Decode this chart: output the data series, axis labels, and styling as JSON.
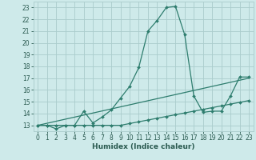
{
  "xlabel": "Humidex (Indice chaleur)",
  "bg_color": "#ceeaea",
  "grid_color": "#aacccc",
  "line_color": "#2e7d6e",
  "xlim": [
    -0.5,
    23.5
  ],
  "ylim": [
    12.5,
    23.5
  ],
  "xticks": [
    0,
    1,
    2,
    3,
    4,
    5,
    6,
    7,
    8,
    9,
    10,
    11,
    12,
    13,
    14,
    15,
    16,
    17,
    18,
    19,
    20,
    21,
    22,
    23
  ],
  "yticks": [
    13,
    14,
    15,
    16,
    17,
    18,
    19,
    20,
    21,
    22,
    23
  ],
  "line1_x": [
    0,
    1,
    2,
    3,
    4,
    5,
    6,
    7,
    8,
    9,
    10,
    11,
    12,
    13,
    14,
    15,
    16,
    17,
    18,
    19,
    20,
    21,
    22,
    23
  ],
  "line1_y": [
    13,
    13,
    12.7,
    13,
    13,
    14.2,
    13.2,
    13.7,
    14.3,
    15.3,
    16.3,
    17.9,
    21.0,
    21.9,
    23.0,
    23.1,
    20.7,
    15.5,
    14.1,
    14.2,
    14.2,
    15.5,
    17.1,
    17.1
  ],
  "line2_x": [
    0,
    23
  ],
  "line2_y": [
    13,
    17
  ],
  "line3_x": [
    0,
    1,
    2,
    3,
    4,
    5,
    6,
    7,
    8,
    9,
    10,
    11,
    12,
    13,
    14,
    15,
    16,
    17,
    18,
    19,
    20,
    21,
    22,
    23
  ],
  "line3_y": [
    13,
    13,
    13,
    13,
    13,
    13,
    13,
    13,
    13,
    13,
    13.15,
    13.3,
    13.45,
    13.6,
    13.75,
    13.9,
    14.05,
    14.2,
    14.35,
    14.5,
    14.65,
    14.8,
    14.95,
    15.1
  ]
}
